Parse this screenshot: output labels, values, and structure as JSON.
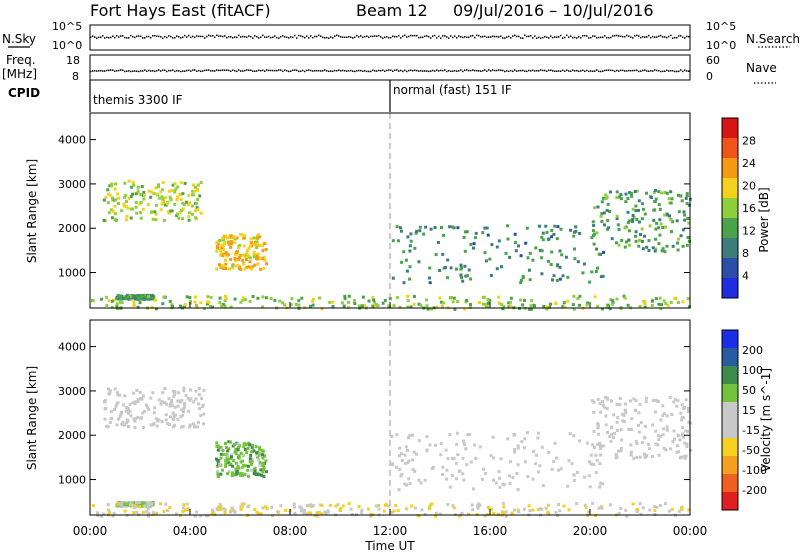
{
  "header": {
    "station": "Fort Hays East (fitACF)",
    "beam": "Beam 12",
    "dates": "09/Jul/2016 – 10/Jul/2016"
  },
  "top_panels": {
    "nsky_label": "N.Sky",
    "nsky_ticks": [
      "10^5",
      "10^0"
    ],
    "nsearch_label": "N.Search",
    "nsearch_ticks": [
      "10^5",
      "10^0"
    ],
    "freq_label": "Freq.",
    "freq_unit": "[MHz]",
    "freq_ticks": [
      "18",
      "8"
    ],
    "nave_label": "Nave",
    "nave_ticks": [
      "60",
      "0"
    ],
    "cpid_label": "CPID",
    "cpid_segments": [
      "themis 3300 IF",
      "normal (fast) 151 IF"
    ]
  },
  "x_axis": {
    "label": "Time UT",
    "ticks": [
      "00:00",
      "04:00",
      "08:00",
      "12:00",
      "16:00",
      "20:00",
      "00:00"
    ],
    "range_hours": [
      0,
      24
    ]
  },
  "colors": {
    "power": [
      "#1f2ce0",
      "#2b4fa6",
      "#3f7d7a",
      "#4aa24a",
      "#8fcf3e",
      "#f2d21c",
      "#f59a14",
      "#f0541a",
      "#d81414"
    ],
    "velocity": [
      "#1a2ee6",
      "#2a5aa0",
      "#3e8a4c",
      "#72c23c",
      "#c8c8c8",
      "#c8c8c8",
      "#f5d020",
      "#f5a020",
      "#f06020",
      "#e02020"
    ]
  },
  "chart_data": [
    {
      "type": "heatmap",
      "title": "",
      "xlabel": "",
      "ylabel": "Slant Range [km]",
      "yticks": [
        "1000",
        "2000",
        "3000",
        "4000"
      ],
      "ylim": [
        200,
        4600
      ],
      "xlim_hours": [
        0,
        24
      ],
      "colorbar": {
        "label": "Power [dB]",
        "ticks": [
          "4",
          "8",
          "12",
          "16",
          "20",
          "24",
          "28"
        ],
        "range": [
          0,
          30
        ]
      },
      "regions": [
        {
          "t_start": 0.5,
          "t_end": 4.5,
          "r_low": 2200,
          "r_high": 3100,
          "level": 16
        },
        {
          "t_start": 5.0,
          "t_end": 7.0,
          "r_low": 1100,
          "r_high": 1900,
          "level": 20
        },
        {
          "t_start": 1.0,
          "t_end": 2.5,
          "r_low": 430,
          "r_high": 520,
          "level": 10
        },
        {
          "t_start": 12.0,
          "t_end": 20.5,
          "r_low": 800,
          "r_high": 2100,
          "level": 9
        },
        {
          "t_start": 20.0,
          "t_end": 24.0,
          "r_low": 1500,
          "r_high": 2900,
          "level": 11
        },
        {
          "t_start": 0.0,
          "t_end": 24.0,
          "r_low": 200,
          "r_high": 500,
          "level": 14
        }
      ]
    },
    {
      "type": "heatmap",
      "title": "",
      "xlabel": "Time UT",
      "ylabel": "Slant Range [km]",
      "yticks": [
        "1000",
        "2000",
        "3000",
        "4000"
      ],
      "ylim": [
        200,
        4600
      ],
      "xlim_hours": [
        0,
        24
      ],
      "colorbar": {
        "label": "Velocity [m s^-1]",
        "ticks": [
          "200",
          "100",
          "50",
          "15",
          "-15",
          "-50",
          "-100",
          "-200"
        ],
        "range": [
          -250,
          250
        ]
      },
      "regions": [
        {
          "t_start": 0.5,
          "t_end": 4.5,
          "r_low": 2200,
          "r_high": 3100,
          "velocity": -10
        },
        {
          "t_start": 5.0,
          "t_end": 7.0,
          "r_low": 1100,
          "r_high": 1900,
          "velocity": 80
        },
        {
          "t_start": 1.0,
          "t_end": 2.5,
          "r_low": 430,
          "r_high": 520,
          "velocity": 50
        },
        {
          "t_start": 12.0,
          "t_end": 20.5,
          "r_low": 800,
          "r_high": 2100,
          "velocity": 0
        },
        {
          "t_start": 20.0,
          "t_end": 24.0,
          "r_low": 1500,
          "r_high": 2900,
          "velocity": 10
        },
        {
          "t_start": 0.0,
          "t_end": 24.0,
          "r_low": 200,
          "r_high": 500,
          "velocity": -40
        }
      ]
    }
  ]
}
